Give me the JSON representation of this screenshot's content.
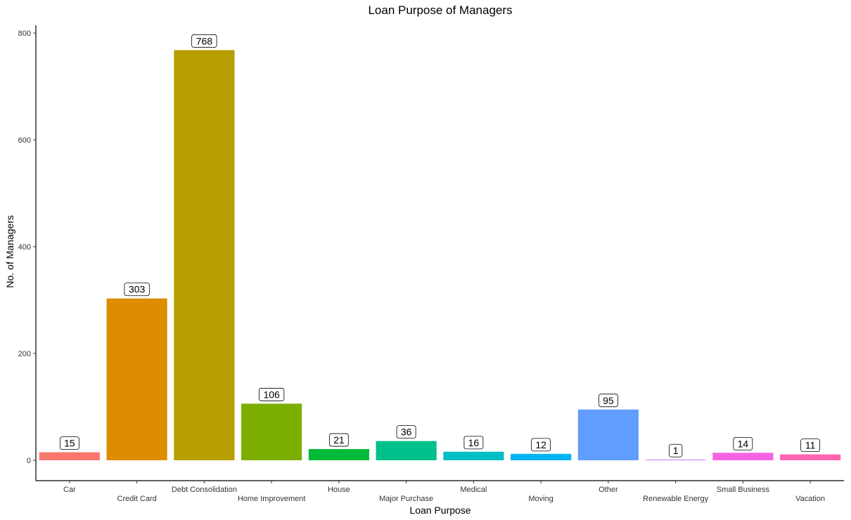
{
  "chart_data": {
    "type": "bar",
    "title": "Loan Purpose of Managers",
    "xlabel": "Loan Purpose",
    "ylabel": "No. of Managers",
    "categories": [
      "Car",
      "Credit Card",
      "Debt Consolidation",
      "Home Improvement",
      "House",
      "Major Purchase",
      "Medical",
      "Moving",
      "Other",
      "Renewable Energy",
      "Small Business",
      "Vacation"
    ],
    "values": [
      15,
      303,
      768,
      106,
      21,
      36,
      16,
      12,
      95,
      1,
      14,
      11
    ],
    "colors": [
      "#F8766D",
      "#DE8C00",
      "#B79F00",
      "#7CAE00",
      "#00BA38",
      "#00C08B",
      "#00BFC4",
      "#00B4F0",
      "#619CFF",
      "#C77CFF",
      "#F564E3",
      "#FF64B0"
    ],
    "ylim": [
      0,
      810
    ],
    "yticks": [
      0,
      200,
      400,
      600,
      800
    ],
    "grid": false,
    "legend": "none"
  }
}
